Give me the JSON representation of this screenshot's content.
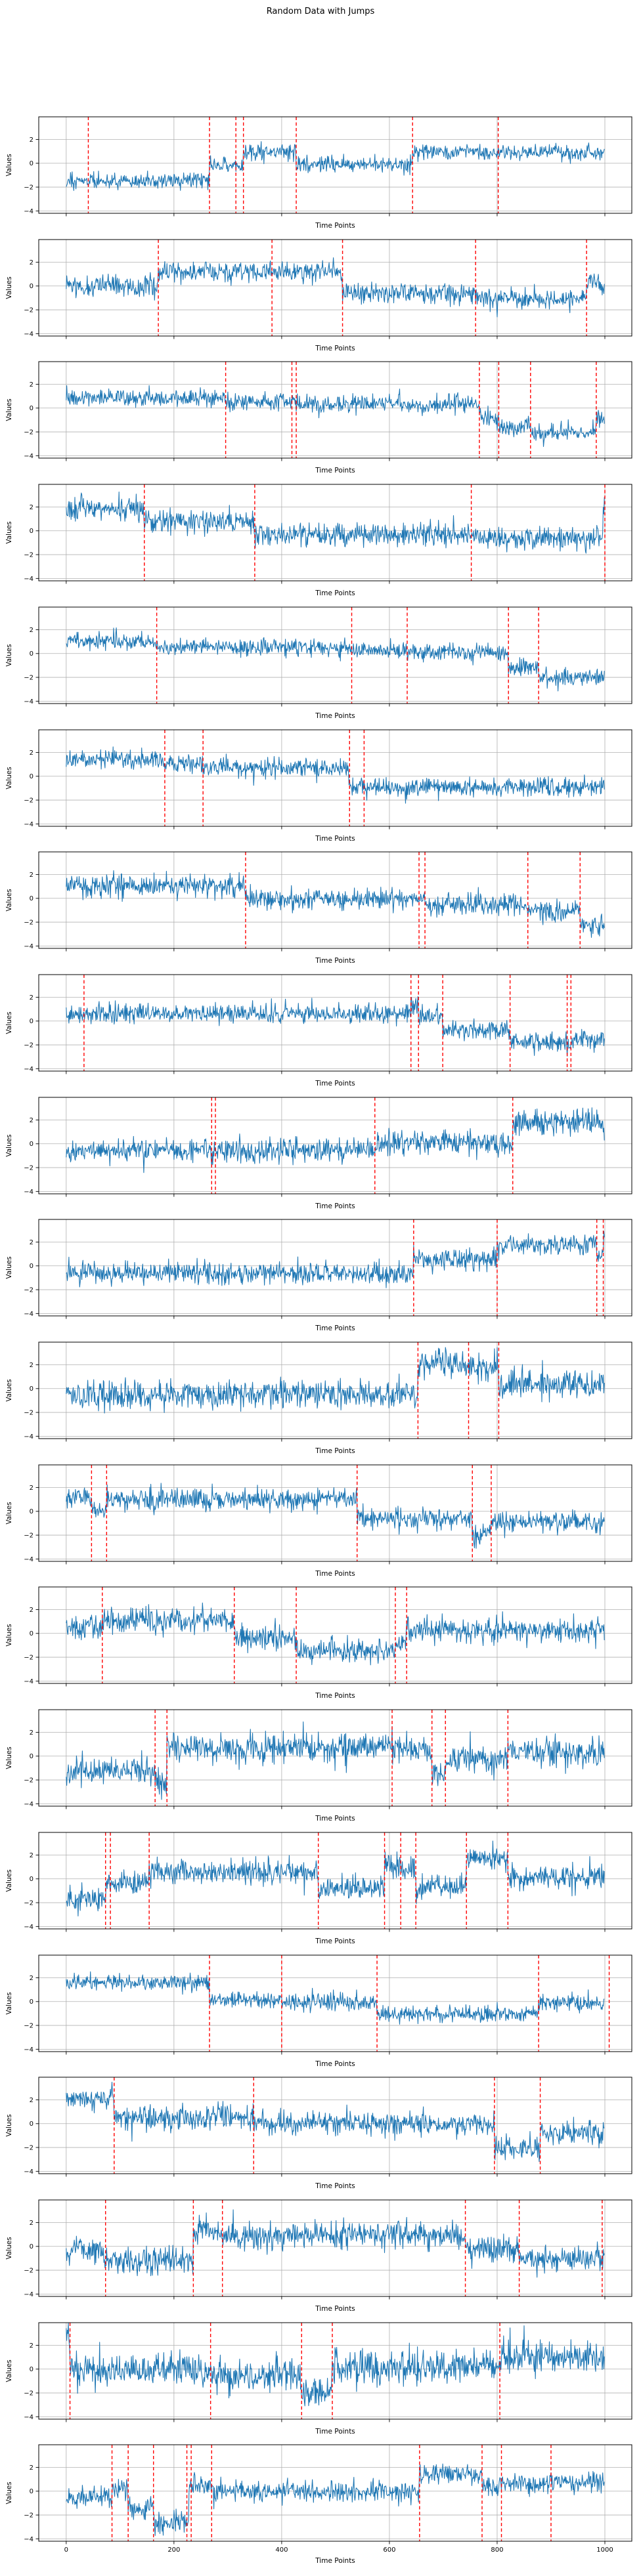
{
  "chart_data": {
    "type": "line",
    "title": "Random Data with Jumps",
    "xlabel": "Time Points",
    "ylabel": "Values",
    "n_subplots": 20,
    "n_points_per_series": 1000,
    "x_ticks": [
      0,
      200,
      400,
      600,
      800,
      1000
    ],
    "y_ticks": [
      2,
      0,
      -2,
      -4
    ],
    "xlim": [
      -51,
      1050
    ],
    "ylim": [
      -4.2,
      3.9
    ],
    "grid": true,
    "x_tick_labels_only_on_last_subplot": true,
    "colors": {
      "series": "#1f77b4",
      "jump_marker": "#ff0000",
      "grid": "#b0b0b0",
      "spine": "#000000",
      "background": "#ffffff"
    },
    "series_description": "gaussian noise around piecewise-constant levels; red dashed vertical lines mark jump locations",
    "subplots": [
      {
        "noise": 0.35,
        "jumps": [
          41,
          266,
          315,
          329,
          427,
          643,
          802
        ],
        "segments": [
          [
            0,
            266,
            -1.5
          ],
          [
            266,
            315,
            -0.15
          ],
          [
            315,
            329,
            -0.35
          ],
          [
            329,
            427,
            1.0
          ],
          [
            427,
            643,
            -0.12
          ],
          [
            643,
            1000,
            0.92
          ]
        ]
      },
      {
        "noise": 0.45,
        "jumps": [
          171,
          382,
          513,
          760,
          966
        ],
        "segments": [
          [
            0,
            171,
            0.0
          ],
          [
            171,
            513,
            1.2
          ],
          [
            513,
            760,
            -0.6
          ],
          [
            760,
            966,
            -1.1
          ],
          [
            966,
            1000,
            0.2
          ]
        ]
      },
      {
        "noise": 0.35,
        "jumps": [
          296,
          419,
          427,
          767,
          803,
          862,
          984
        ],
        "segments": [
          [
            0,
            296,
            0.85
          ],
          [
            296,
            427,
            0.55
          ],
          [
            427,
            767,
            0.3
          ],
          [
            767,
            803,
            -0.75
          ],
          [
            803,
            862,
            -1.6
          ],
          [
            862,
            984,
            -2.05
          ],
          [
            984,
            1000,
            -1.0
          ]
        ]
      },
      {
        "noise": 0.5,
        "jumps": [
          145,
          350,
          752,
          1000
        ],
        "segments": [
          [
            0,
            145,
            1.8
          ],
          [
            145,
            350,
            0.8
          ],
          [
            350,
            752,
            -0.3
          ],
          [
            752,
            997,
            -0.6
          ],
          [
            997,
            1000,
            2.3
          ]
        ]
      },
      {
        "noise": 0.35,
        "jumps": [
          168,
          530,
          633,
          821,
          877
        ],
        "segments": [
          [
            0,
            168,
            1.0
          ],
          [
            168,
            530,
            0.55
          ],
          [
            530,
            633,
            0.25
          ],
          [
            633,
            821,
            0.1
          ],
          [
            821,
            877,
            -1.2
          ],
          [
            877,
            1000,
            -2.0
          ]
        ]
      },
      {
        "noise": 0.4,
        "jumps": [
          183,
          254,
          526,
          553
        ],
        "segments": [
          [
            0,
            183,
            1.4
          ],
          [
            183,
            254,
            1.05
          ],
          [
            254,
            526,
            0.7
          ],
          [
            526,
            1000,
            -0.9
          ]
        ]
      },
      {
        "noise": 0.45,
        "jumps": [
          333,
          655,
          666,
          857,
          954
        ],
        "segments": [
          [
            0,
            333,
            1.1
          ],
          [
            333,
            655,
            0.0
          ],
          [
            655,
            666,
            0.2
          ],
          [
            666,
            857,
            -0.5
          ],
          [
            857,
            954,
            -1.1
          ],
          [
            954,
            1000,
            -2.2
          ]
        ]
      },
      {
        "noise": 0.4,
        "jumps": [
          33,
          640,
          654,
          699,
          824,
          930,
          937
        ],
        "segments": [
          [
            0,
            33,
            0.45
          ],
          [
            33,
            640,
            0.65
          ],
          [
            640,
            654,
            1.3
          ],
          [
            654,
            699,
            0.35
          ],
          [
            699,
            824,
            -0.75
          ],
          [
            824,
            930,
            -1.7
          ],
          [
            930,
            937,
            -2.3
          ],
          [
            937,
            1000,
            -1.6
          ]
        ]
      },
      {
        "noise": 0.5,
        "jumps": [
          270,
          277,
          573,
          829
        ],
        "segments": [
          [
            0,
            573,
            -0.55
          ],
          [
            573,
            829,
            0.05
          ],
          [
            829,
            1000,
            1.9
          ]
        ]
      },
      {
        "noise": 0.45,
        "jumps": [
          645,
          800,
          985,
          997
        ],
        "segments": [
          [
            0,
            645,
            -0.6
          ],
          [
            645,
            800,
            0.5
          ],
          [
            800,
            985,
            1.8
          ],
          [
            985,
            997,
            1.0
          ],
          [
            997,
            1000,
            1.9
          ]
        ]
      },
      {
        "noise": 0.6,
        "jumps": [
          653,
          747,
          803
        ],
        "segments": [
          [
            0,
            653,
            -0.5
          ],
          [
            653,
            747,
            2.1
          ],
          [
            747,
            803,
            1.7
          ],
          [
            803,
            1000,
            0.4
          ]
        ]
      },
      {
        "noise": 0.45,
        "jumps": [
          47,
          75,
          540,
          754,
          789
        ],
        "segments": [
          [
            0,
            47,
            1.2
          ],
          [
            47,
            75,
            0.1
          ],
          [
            75,
            540,
            1.0
          ],
          [
            540,
            754,
            -0.6
          ],
          [
            754,
            789,
            -2.0
          ],
          [
            789,
            1000,
            -0.9
          ]
        ]
      },
      {
        "noise": 0.5,
        "jumps": [
          67,
          312,
          427,
          611,
          632
        ],
        "segments": [
          [
            0,
            67,
            0.5
          ],
          [
            67,
            312,
            1.1
          ],
          [
            312,
            427,
            -0.4
          ],
          [
            427,
            611,
            -1.5
          ],
          [
            611,
            632,
            -1.0
          ],
          [
            632,
            1000,
            0.25
          ]
        ]
      },
      {
        "noise": 0.6,
        "jumps": [
          165,
          187,
          605,
          679,
          704,
          820
        ],
        "segments": [
          [
            0,
            165,
            -1.2
          ],
          [
            165,
            187,
            -2.2
          ],
          [
            187,
            679,
            0.75
          ],
          [
            679,
            704,
            -1.4
          ],
          [
            704,
            820,
            -0.25
          ],
          [
            820,
            1000,
            0.3
          ]
        ]
      },
      {
        "noise": 0.5,
        "jumps": [
          73,
          82,
          154,
          468,
          591,
          621,
          649,
          743,
          820
        ],
        "segments": [
          [
            0,
            75,
            -1.7
          ],
          [
            75,
            154,
            -0.4
          ],
          [
            154,
            468,
            0.6
          ],
          [
            468,
            591,
            -0.8
          ],
          [
            591,
            621,
            1.2
          ],
          [
            621,
            649,
            0.7
          ],
          [
            649,
            743,
            -0.7
          ],
          [
            743,
            820,
            1.7
          ],
          [
            820,
            1000,
            0.1
          ]
        ]
      },
      {
        "noise": 0.35,
        "jumps": [
          266,
          400,
          577,
          877,
          1008
        ],
        "segments": [
          [
            0,
            266,
            1.6
          ],
          [
            266,
            400,
            0.15
          ],
          [
            400,
            577,
            -0.1
          ],
          [
            577,
            877,
            -1.05
          ],
          [
            877,
            1000,
            -0.15
          ]
        ]
      },
      {
        "noise": 0.5,
        "jumps": [
          89,
          348,
          795,
          880
        ],
        "segments": [
          [
            0,
            89,
            2.1
          ],
          [
            89,
            348,
            0.5
          ],
          [
            348,
            795,
            0.0
          ],
          [
            795,
            880,
            -2.0
          ],
          [
            880,
            1000,
            -0.8
          ]
        ]
      },
      {
        "noise": 0.55,
        "jumps": [
          73,
          236,
          290,
          741,
          841,
          995
        ],
        "segments": [
          [
            0,
            73,
            -0.4
          ],
          [
            73,
            236,
            -1.2
          ],
          [
            236,
            290,
            1.3
          ],
          [
            290,
            741,
            0.95
          ],
          [
            741,
            841,
            -0.2
          ],
          [
            841,
            1000,
            -1.05
          ]
        ]
      },
      {
        "noise": 0.7,
        "jumps": [
          7,
          268,
          437,
          494,
          805
        ],
        "segments": [
          [
            0,
            7,
            3.0
          ],
          [
            7,
            268,
            -0.1
          ],
          [
            268,
            437,
            -0.55
          ],
          [
            437,
            494,
            -2.0
          ],
          [
            494,
            805,
            0.2
          ],
          [
            805,
            1000,
            1.0
          ]
        ]
      },
      {
        "noise": 0.45,
        "jumps": [
          85,
          115,
          162,
          224,
          232,
          270,
          656,
          772,
          808,
          900
        ],
        "segments": [
          [
            0,
            85,
            -0.6
          ],
          [
            85,
            115,
            0.2
          ],
          [
            115,
            162,
            -1.35
          ],
          [
            162,
            228,
            -2.5
          ],
          [
            228,
            270,
            0.5
          ],
          [
            270,
            656,
            0.0
          ],
          [
            656,
            772,
            1.4
          ],
          [
            772,
            808,
            0.45
          ],
          [
            808,
            900,
            0.6
          ],
          [
            900,
            1000,
            0.8
          ]
        ]
      }
    ]
  }
}
